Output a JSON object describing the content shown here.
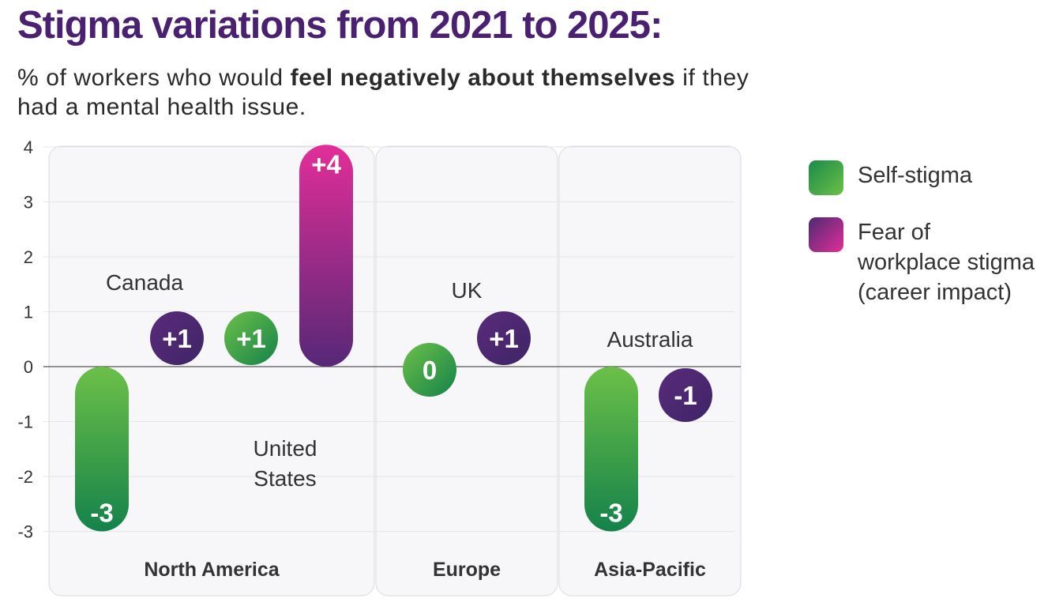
{
  "title": "Stigma variations from 2021 to 2025:",
  "subtitle": {
    "prefix": "% of workers who would ",
    "bold": "feel negatively about themselves",
    "suffix": " if they had a mental health issue."
  },
  "legend": [
    {
      "key": "self",
      "label": "Self-stigma"
    },
    {
      "key": "fear",
      "label": "Fear of workplace stigma (career impact)"
    }
  ],
  "colors": {
    "self_dark": "#1a8a4a",
    "self_light": "#6cc048",
    "fear_dark": "#4b2a73",
    "fear_light": "#e22e98",
    "title": "#4a2170"
  },
  "chart_data": {
    "type": "bar",
    "ylim": [
      -3,
      4
    ],
    "yticks": [
      4,
      3,
      2,
      1,
      0,
      -1,
      -2,
      -3
    ],
    "grid": true,
    "legend_position": "right",
    "regions": [
      "North America",
      "Europe",
      "Asia-Pacific"
    ],
    "countries": [
      {
        "name": "Canada",
        "region": "North America",
        "self_stigma": -3,
        "fear_of_workplace_stigma": 1
      },
      {
        "name": "United States",
        "region": "North America",
        "self_stigma": 1,
        "fear_of_workplace_stigma": 4
      },
      {
        "name": "UK",
        "region": "Europe",
        "self_stigma": 0,
        "fear_of_workplace_stigma": 1
      },
      {
        "name": "Australia",
        "region": "Asia-Pacific",
        "self_stigma": -3,
        "fear_of_workplace_stigma": -1
      }
    ],
    "bars": [
      {
        "country": "Canada",
        "series": "Self-stigma",
        "value": -3,
        "label": "-3"
      },
      {
        "country": "Canada",
        "series": "Fear of workplace stigma (career impact)",
        "value": 1,
        "label": "+1"
      },
      {
        "country": "United States",
        "series": "Self-stigma",
        "value": 1,
        "label": "+1"
      },
      {
        "country": "United States",
        "series": "Fear of workplace stigma (career impact)",
        "value": 4,
        "label": "+4"
      },
      {
        "country": "UK",
        "series": "Self-stigma",
        "value": 0,
        "label": "0"
      },
      {
        "country": "UK",
        "series": "Fear of workplace stigma (career impact)",
        "value": 1,
        "label": "+1"
      },
      {
        "country": "Australia",
        "series": "Self-stigma",
        "value": -3,
        "label": "-3"
      },
      {
        "country": "Australia",
        "series": "Fear of workplace stigma (career impact)",
        "value": -1,
        "label": "-1"
      }
    ],
    "country_labels": [
      {
        "text": "Canada"
      },
      {
        "text": "United States",
        "lines": [
          "United",
          "States"
        ]
      },
      {
        "text": "UK"
      },
      {
        "text": "Australia"
      }
    ]
  }
}
